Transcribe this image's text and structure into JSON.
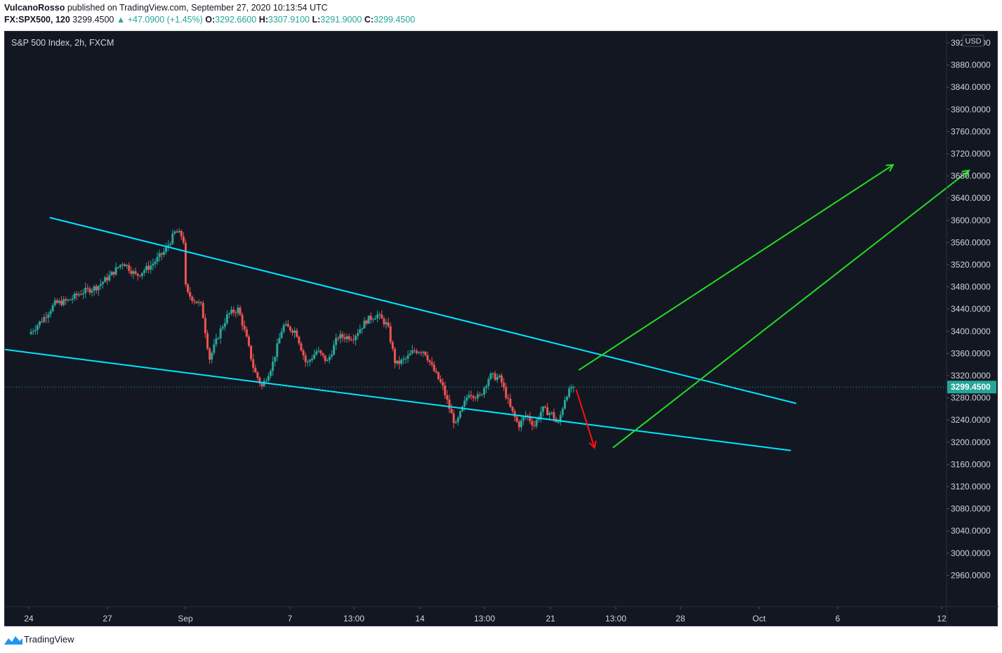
{
  "header": {
    "author": "VulcanoRosso",
    "published_text": " published on TradingView.com, September 27, 2020 10:13:54 UTC",
    "symbol": "FX:SPX500, 120",
    "last": "3299.4500",
    "change": "▲ +47.0900 (+1.45%)",
    "o_label": "O:",
    "o_value": "3292.6600",
    "h_label": "H:",
    "h_value": "3307.9100",
    "l_label": "L:",
    "l_value": "3291.9000",
    "c_label": "C:",
    "c_value": "3299.4500"
  },
  "footer": {
    "brand": "TradingView"
  },
  "colors": {
    "background": "#131722",
    "up": "#26a69a",
    "down": "#ef5350",
    "trendline": "#00e5ff",
    "bull_arrow": "#22dd22",
    "bear_arrow": "#ff1111",
    "axis_text": "#d1d4dc",
    "price_tag": "#26a69a"
  },
  "chart_data": {
    "type": "candlestick",
    "title": "S&P 500 Index, 2h, FXCM",
    "currency": "USD",
    "last_price": 3299.45,
    "last_price_label": "3299.4500",
    "y_ticks": [
      "3920.0000",
      "3880.0000",
      "3840.0000",
      "3800.0000",
      "3760.0000",
      "3720.0000",
      "3680.0000",
      "3640.0000",
      "3600.0000",
      "3560.0000",
      "3520.0000",
      "3480.0000",
      "3440.0000",
      "3400.0000",
      "3360.0000",
      "3320.0000",
      "3280.0000",
      "3240.0000",
      "3200.0000",
      "3160.0000",
      "3120.0000",
      "3080.0000",
      "3040.0000",
      "3000.0000",
      "2960.0000"
    ],
    "x_ticks": [
      "24",
      "27",
      "Sep",
      "7",
      "13:00",
      "14",
      "13:00",
      "21",
      "13:00",
      "28",
      "Oct",
      "6",
      "12"
    ],
    "ylim": [
      2920,
      3950
    ],
    "price_path": [
      [
        0,
        3395
      ],
      [
        0.05,
        3420
      ],
      [
        0.1,
        3450
      ],
      [
        0.15,
        3455
      ],
      [
        0.2,
        3470
      ],
      [
        0.26,
        3480
      ],
      [
        0.31,
        3500
      ],
      [
        0.36,
        3525
      ],
      [
        0.41,
        3500
      ],
      [
        0.47,
        3520
      ],
      [
        0.52,
        3545
      ],
      [
        0.56,
        3580
      ],
      [
        0.59,
        3570
      ],
      [
        0.6,
        3470
      ],
      [
        0.66,
        3445
      ],
      [
        0.69,
        3350
      ],
      [
        0.73,
        3400
      ],
      [
        0.76,
        3430
      ],
      [
        0.8,
        3440
      ],
      [
        0.83,
        3390
      ],
      [
        0.86,
        3330
      ],
      [
        0.89,
        3300
      ],
      [
        0.93,
        3340
      ],
      [
        0.97,
        3410
      ],
      [
        1.02,
        3400
      ],
      [
        1.06,
        3340
      ],
      [
        1.1,
        3365
      ],
      [
        1.14,
        3345
      ],
      [
        1.18,
        3390
      ],
      [
        1.24,
        3390
      ],
      [
        1.29,
        3420
      ],
      [
        1.33,
        3430
      ],
      [
        1.37,
        3410
      ],
      [
        1.4,
        3340
      ],
      [
        1.44,
        3350
      ],
      [
        1.47,
        3365
      ],
      [
        1.51,
        3365
      ],
      [
        1.54,
        3335
      ],
      [
        1.58,
        3300
      ],
      [
        1.61,
        3255
      ],
      [
        1.63,
        3230
      ],
      [
        1.68,
        3290
      ],
      [
        1.72,
        3280
      ],
      [
        1.76,
        3320
      ],
      [
        1.8,
        3315
      ],
      [
        1.84,
        3260
      ],
      [
        1.87,
        3230
      ],
      [
        1.9,
        3250
      ],
      [
        1.93,
        3230
      ],
      [
        1.96,
        3260
      ],
      [
        2.0,
        3250
      ],
      [
        2.02,
        3230
      ],
      [
        2.05,
        3285
      ],
      [
        2.08,
        3299.45
      ]
    ],
    "trendlines": [
      {
        "name": "upper",
        "p1": [
          0.08,
          3605
        ],
        "p2": [
          2.93,
          3270
        ]
      },
      {
        "name": "lower",
        "p1": [
          -0.6,
          3398
        ],
        "p2": [
          2.91,
          3185
        ]
      }
    ],
    "arrows": [
      {
        "name": "bear-arrow",
        "color": "bear",
        "from": [
          2.09,
          3295
        ],
        "to": [
          2.16,
          3190
        ]
      },
      {
        "name": "bull-arrow-1",
        "color": "bull",
        "from": [
          2.1,
          3330
        ],
        "to": [
          3.3,
          3700
        ]
      },
      {
        "name": "bull-arrow-2",
        "color": "bull",
        "from": [
          2.23,
          3190
        ],
        "to": [
          3.59,
          3690
        ]
      }
    ],
    "x_range_days": [
      -0.62,
      3.88
    ],
    "gridlines": false
  }
}
